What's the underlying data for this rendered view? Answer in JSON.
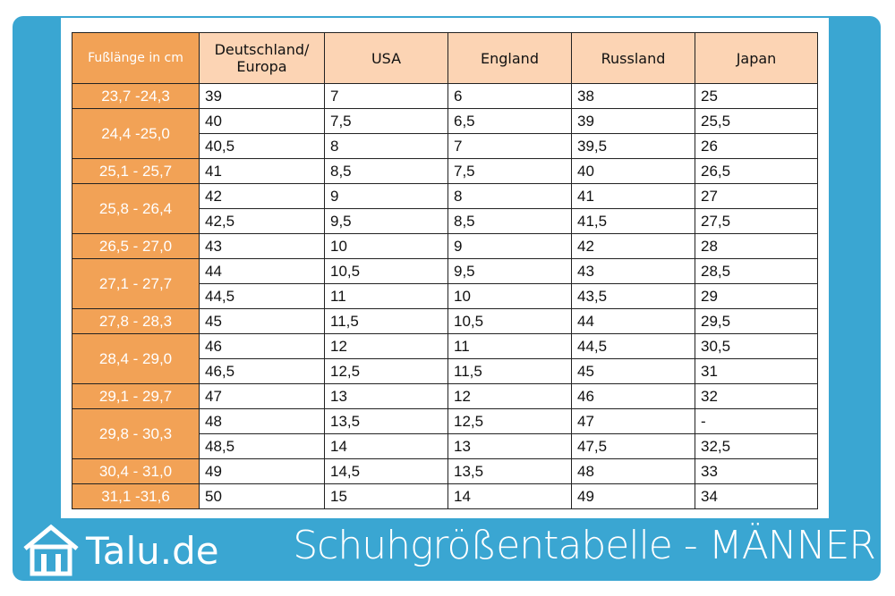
{
  "table": {
    "header": [
      "Fußlänge in cm",
      "Deutschland/ Europa",
      "USA",
      "England",
      "Russland",
      "Japan"
    ],
    "groups": [
      {
        "length": "23,7 -24,3",
        "rows": [
          [
            "39",
            "7",
            "6",
            "38",
            "25"
          ]
        ]
      },
      {
        "length": "24,4 -25,0",
        "rows": [
          [
            "40",
            "7,5",
            "6,5",
            "39",
            "25,5"
          ],
          [
            "40,5",
            "8",
            "7",
            "39,5",
            "26"
          ]
        ]
      },
      {
        "length": "25,1 - 25,7",
        "rows": [
          [
            "41",
            "8,5",
            "7,5",
            "40",
            "26,5"
          ]
        ]
      },
      {
        "length": "25,8 - 26,4",
        "rows": [
          [
            "42",
            "9",
            "8",
            "41",
            "27"
          ],
          [
            "42,5",
            "9,5",
            "8,5",
            "41,5",
            "27,5"
          ]
        ]
      },
      {
        "length": "26,5 - 27,0",
        "rows": [
          [
            "43",
            "10",
            "9",
            "42",
            "28"
          ]
        ]
      },
      {
        "length": "27,1 - 27,7",
        "rows": [
          [
            "44",
            "10,5",
            "9,5",
            "43",
            "28,5"
          ],
          [
            "44,5",
            "11",
            "10",
            "43,5",
            "29"
          ]
        ]
      },
      {
        "length": "27,8 - 28,3",
        "rows": [
          [
            "45",
            "11,5",
            "10,5",
            "44",
            "29,5"
          ]
        ]
      },
      {
        "length": "28,4 - 29,0",
        "rows": [
          [
            "46",
            "12",
            "11",
            "44,5",
            "30,5"
          ],
          [
            "46,5",
            "12,5",
            "11,5",
            "45",
            "31"
          ]
        ]
      },
      {
        "length": "29,1 - 29,7",
        "rows": [
          [
            "47",
            "13",
            "12",
            "46",
            "32"
          ]
        ]
      },
      {
        "length": "29,8 - 30,3",
        "rows": [
          [
            "48",
            "13,5",
            "12,5",
            "47",
            "-"
          ],
          [
            "48,5",
            "14",
            "13",
            "47,5",
            "32,5"
          ]
        ]
      },
      {
        "length": "30,4 - 31,0",
        "rows": [
          [
            "49",
            "14,5",
            "13,5",
            "48",
            "33"
          ]
        ]
      },
      {
        "length": "31,1 -31,6",
        "rows": [
          [
            "50",
            "15",
            "14",
            "49",
            "34"
          ]
        ]
      }
    ]
  },
  "footer": {
    "logo": "Talu.de",
    "title": "Schuhgrößentabelle - MÄNNER"
  }
}
